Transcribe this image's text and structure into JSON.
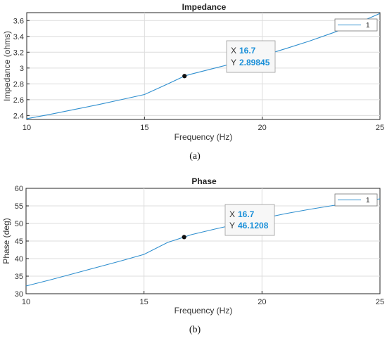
{
  "chart_data": [
    {
      "type": "line",
      "title": "Impedance",
      "xlabel": "Frequency (Hz)",
      "ylabel": "Impedance (ohms)",
      "xlim": [
        10,
        25
      ],
      "ylim": [
        2.35,
        3.7
      ],
      "xticks": [
        10,
        15,
        20,
        25
      ],
      "yticks": [
        2.4,
        2.6,
        2.8,
        3,
        3.2,
        3.4,
        3.6
      ],
      "grid": true,
      "legend_position": "top-right",
      "series": [
        {
          "name": "1",
          "color": "#2f8fcf",
          "x": [
            10,
            11,
            12,
            13,
            14,
            15,
            16,
            16.7,
            17,
            18,
            19,
            20,
            21,
            22,
            23,
            24,
            25
          ],
          "y": [
            2.36,
            2.415,
            2.475,
            2.535,
            2.6,
            2.665,
            2.8,
            2.89845,
            2.925,
            3.0,
            3.075,
            3.155,
            3.245,
            3.34,
            3.445,
            3.56,
            3.69
          ]
        }
      ],
      "datatip": {
        "x_key": "X",
        "x_value": "16.7",
        "y_key": "Y",
        "y_value": "2.89845",
        "x": 16.7,
        "y": 2.89845
      },
      "caption": "(a)"
    },
    {
      "type": "line",
      "title": "Phase",
      "xlabel": "Frequency (Hz)",
      "ylabel": "Phase (deg)",
      "xlim": [
        10,
        25
      ],
      "ylim": [
        30,
        60
      ],
      "xticks": [
        10,
        15,
        20,
        25
      ],
      "yticks": [
        30,
        35,
        40,
        45,
        50,
        55,
        60
      ],
      "grid": true,
      "legend_position": "top-right",
      "series": [
        {
          "name": "1",
          "color": "#2f8fcf",
          "x": [
            10,
            11,
            12,
            13,
            14,
            15,
            16,
            16.7,
            17,
            18,
            19,
            20,
            21,
            22,
            23,
            24,
            25
          ],
          "y": [
            32.2,
            33.9,
            35.7,
            37.5,
            39.3,
            41.2,
            44.6,
            46.1208,
            46.8,
            48.4,
            49.9,
            51.4,
            52.8,
            54.0,
            55.1,
            56.1,
            57.0
          ]
        }
      ],
      "datatip": {
        "x_key": "X",
        "x_value": "16.7",
        "y_key": "Y",
        "y_value": "46.1208",
        "x": 16.7,
        "y": 46.1208
      },
      "caption": "(b)"
    }
  ]
}
